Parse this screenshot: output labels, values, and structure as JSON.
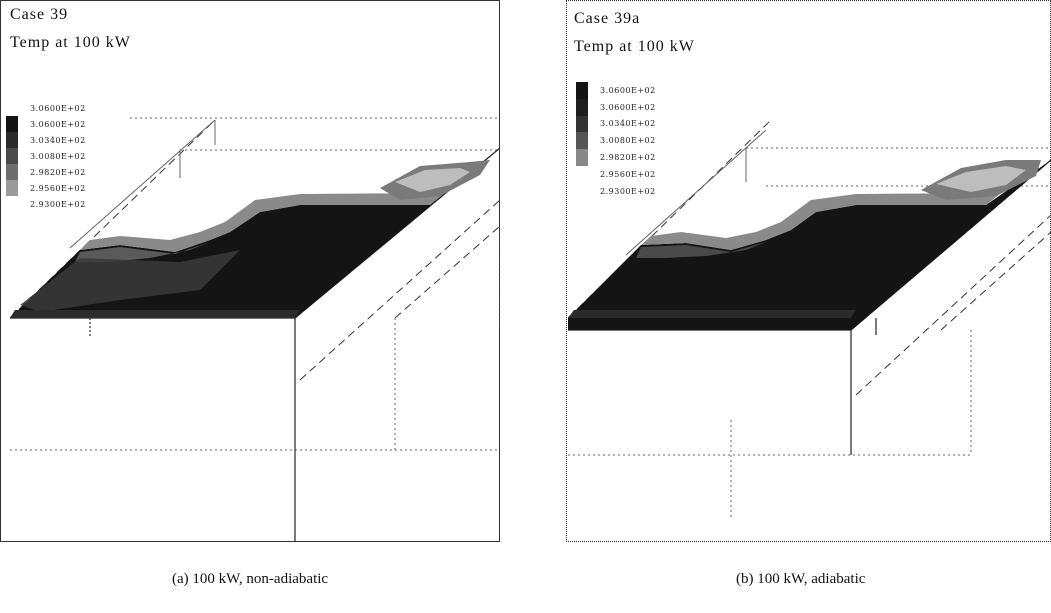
{
  "panels": [
    {
      "case": "Case 39",
      "temp": "Temp at 100 kW",
      "legend": [
        "3.0600E+02",
        "3.0600E+02",
        "3.0340E+02",
        "3.0080E+02",
        "2.9820E+02",
        "2.9560E+02",
        "2.9300E+02"
      ],
      "caption": "(a) 100 kW, non-adiabatic"
    },
    {
      "case": "Case 39a",
      "temp": "Temp at 100 kW",
      "legend": [
        "3.0600E+02",
        "3.0600E+02",
        "3.0340E+02",
        "3.0080E+02",
        "2.9820E+02",
        "2.9560E+02",
        "2.9300E+02"
      ],
      "caption": "(b) 100 kW, adiabatic"
    }
  ],
  "colors": {
    "contour_dark": "#141414",
    "contour_mid": "#3a3a3a",
    "contour_light": "#8a8a8a",
    "contour_pale": "#bdbdbd",
    "line": "#222222"
  }
}
